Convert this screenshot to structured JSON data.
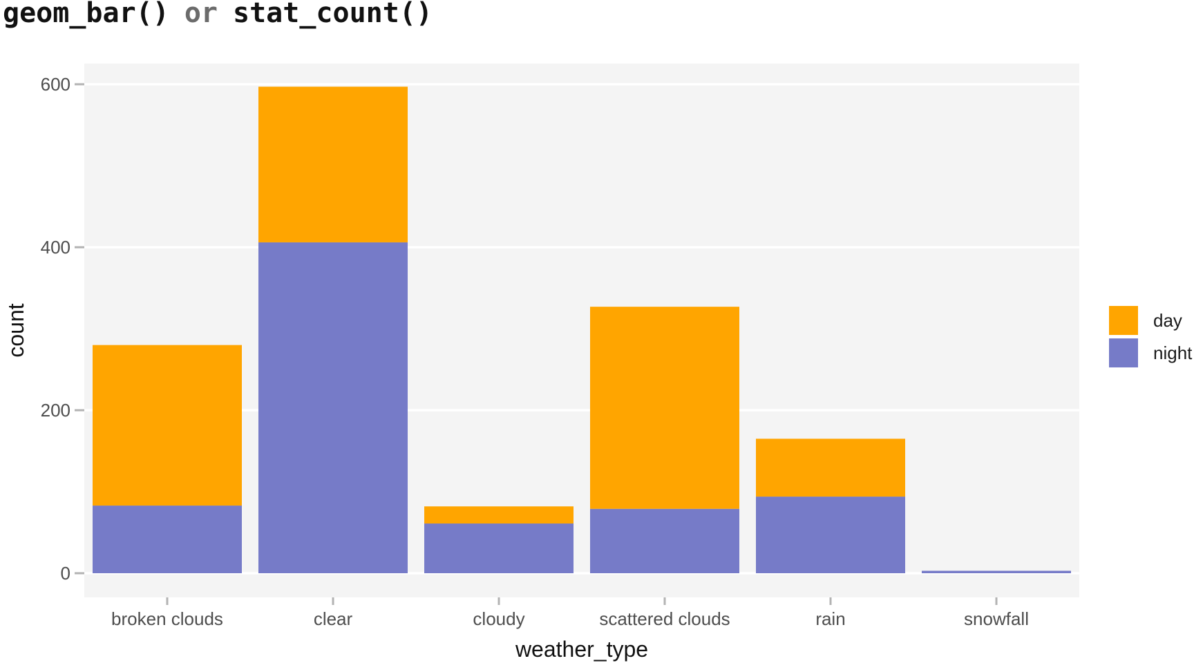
{
  "title": {
    "part1": "geom_bar()",
    "connector": "or",
    "part2": "stat_count()"
  },
  "chart_data": {
    "type": "bar",
    "stacked": true,
    "categories": [
      "broken clouds",
      "clear",
      "cloudy",
      "scattered clouds",
      "rain",
      "snowfall"
    ],
    "series": [
      {
        "name": "night",
        "color": "#767BC8",
        "values": [
          83,
          406,
          61,
          79,
          94,
          3
        ]
      },
      {
        "name": "day",
        "color": "#FFA500",
        "values": [
          197,
          191,
          21,
          248,
          71,
          0
        ]
      }
    ],
    "xlabel": "weather_type",
    "ylabel": "count",
    "ylim": [
      -30,
      625
    ],
    "yticks": [
      0,
      200,
      400,
      600
    ],
    "grid": true,
    "legend": {
      "position": "right",
      "entries": [
        "day",
        "night"
      ]
    },
    "panel_background": "#F4F4F4",
    "gridline_color": "#FFFFFF"
  }
}
